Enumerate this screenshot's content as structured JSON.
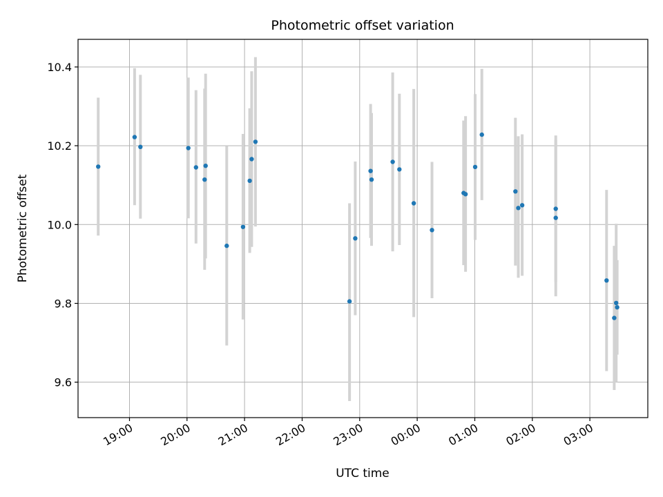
{
  "chart_data": {
    "type": "scatter",
    "title": "Photometric offset variation",
    "xlabel": "UTC time",
    "ylabel": "Photometric offset",
    "x_axis_kind": "time",
    "y_ticks": [
      "9.6",
      "9.8",
      "10.0",
      "10.2",
      "10.4"
    ],
    "y_tick_values": [
      9.6,
      9.8,
      10.0,
      10.2,
      10.4
    ],
    "ylim": [
      9.51,
      10.47
    ],
    "x_ticks": [
      "19:00",
      "20:00",
      "21:00",
      "22:00",
      "23:00",
      "00:00",
      "01:00",
      "02:00",
      "03:00"
    ],
    "x_tick_values": [
      "18:59:37",
      "19:59:37",
      "20:59:37",
      "21:59:37",
      "22:59:37",
      "23:59:37",
      "00:59:37",
      "01:59:37",
      "02:59:37"
    ],
    "xlim": [
      "18:06",
      "04:00"
    ],
    "grid": true,
    "colors": {
      "marker": "#1f77b4",
      "errorbar": "#d3d3d3",
      "grid": "#b0b0b0"
    },
    "points": [
      {
        "t": "18:27",
        "y": 10.147,
        "lo": 9.972,
        "hi": 10.322
      },
      {
        "t": "19:05",
        "y": 10.222,
        "lo": 10.049,
        "hi": 10.397
      },
      {
        "t": "19:11",
        "y": 10.197,
        "lo": 10.015,
        "hi": 10.38
      },
      {
        "t": "20:01",
        "y": 10.194,
        "lo": 10.016,
        "hi": 10.373
      },
      {
        "t": "20:09",
        "y": 10.145,
        "lo": 9.952,
        "hi": 10.341
      },
      {
        "t": "20:18",
        "y": 10.114,
        "lo": 9.885,
        "hi": 10.345
      },
      {
        "t": "20:19",
        "y": 10.149,
        "lo": 9.914,
        "hi": 10.383
      },
      {
        "t": "20:41",
        "y": 9.946,
        "lo": 9.693,
        "hi": 10.199
      },
      {
        "t": "20:58",
        "y": 9.994,
        "lo": 9.759,
        "hi": 10.23
      },
      {
        "t": "21:05",
        "y": 10.111,
        "lo": 9.928,
        "hi": 10.295
      },
      {
        "t": "21:07",
        "y": 10.166,
        "lo": 9.943,
        "hi": 10.389
      },
      {
        "t": "21:11",
        "y": 10.21,
        "lo": 9.995,
        "hi": 10.425
      },
      {
        "t": "22:49",
        "y": 9.805,
        "lo": 9.552,
        "hi": 10.054
      },
      {
        "t": "22:55",
        "y": 9.965,
        "lo": 9.77,
        "hi": 10.16
      },
      {
        "t": "23:11",
        "y": 10.136,
        "lo": 9.966,
        "hi": 10.306
      },
      {
        "t": "23:12",
        "y": 10.114,
        "lo": 9.946,
        "hi": 10.283
      },
      {
        "t": "23:34",
        "y": 10.159,
        "lo": 9.932,
        "hi": 10.386
      },
      {
        "t": "23:41",
        "y": 10.14,
        "lo": 9.948,
        "hi": 10.332
      },
      {
        "t": "23:56",
        "y": 10.054,
        "lo": 9.765,
        "hi": 10.344
      },
      {
        "t": "00:15",
        "y": 9.986,
        "lo": 9.813,
        "hi": 10.159
      },
      {
        "t": "00:48",
        "y": 10.08,
        "lo": 9.897,
        "hi": 10.264
      },
      {
        "t": "00:50",
        "y": 10.077,
        "lo": 9.88,
        "hi": 10.275
      },
      {
        "t": "01:00",
        "y": 10.146,
        "lo": 9.961,
        "hi": 10.331
      },
      {
        "t": "01:07",
        "y": 10.228,
        "lo": 10.062,
        "hi": 10.395
      },
      {
        "t": "01:42",
        "y": 10.084,
        "lo": 9.896,
        "hi": 10.271
      },
      {
        "t": "01:45",
        "y": 10.042,
        "lo": 9.865,
        "hi": 10.224
      },
      {
        "t": "01:49",
        "y": 10.049,
        "lo": 9.87,
        "hi": 10.229
      },
      {
        "t": "02:24",
        "y": 10.04,
        "lo": 9.854,
        "hi": 10.226
      },
      {
        "t": "02:24",
        "y": 10.017,
        "lo": 9.818,
        "hi": 10.215
      },
      {
        "t": "03:17",
        "y": 9.858,
        "lo": 9.628,
        "hi": 10.088
      },
      {
        "t": "03:25",
        "y": 9.763,
        "lo": 9.58,
        "hi": 9.946
      },
      {
        "t": "03:27",
        "y": 9.801,
        "lo": 9.6,
        "hi": 10.002
      },
      {
        "t": "03:28",
        "y": 9.79,
        "lo": 9.67,
        "hi": 9.91
      }
    ]
  }
}
